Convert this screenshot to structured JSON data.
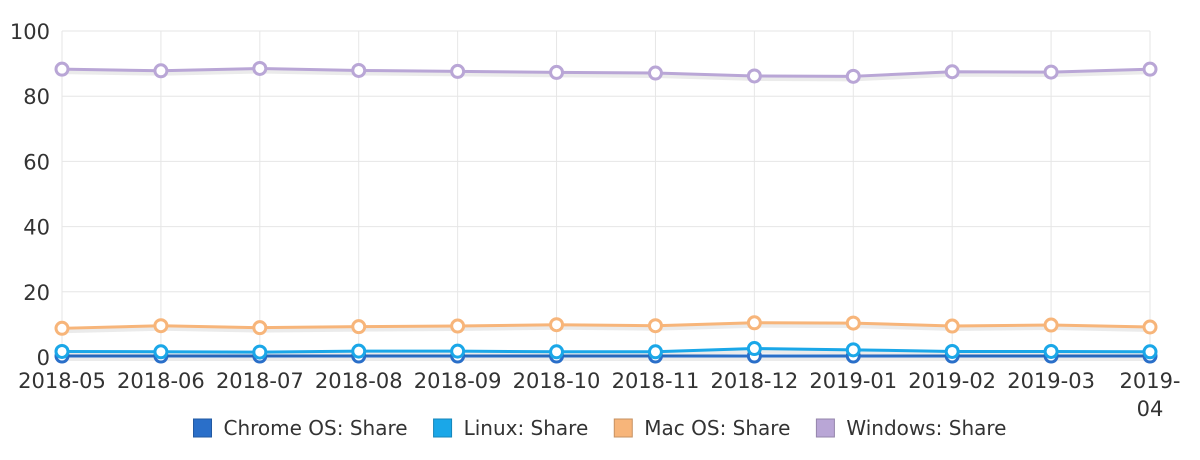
{
  "chart_data": {
    "type": "line",
    "categories": [
      "2018-05",
      "2018-06",
      "2018-07",
      "2018-08",
      "2018-09",
      "2018-10",
      "2018-11",
      "2018-12",
      "2019-01",
      "2019-02",
      "2019-03",
      "2019-04"
    ],
    "category_display": [
      [
        "2018-05"
      ],
      [
        "2018-06"
      ],
      [
        "2018-07"
      ],
      [
        "2018-08"
      ],
      [
        "2018-09"
      ],
      [
        "2018-10"
      ],
      [
        "2018-11"
      ],
      [
        "2018-12"
      ],
      [
        "2019-01"
      ],
      [
        "2019-02"
      ],
      [
        "2019-03"
      ],
      [
        "2019-",
        "04"
      ]
    ],
    "ylim": [
      0,
      100
    ],
    "yticks": [
      0,
      20,
      40,
      60,
      80,
      100
    ],
    "grid": true,
    "legend_position": "bottom",
    "series": [
      {
        "name": "Chrome OS: Share",
        "color": "#2a6fc9",
        "values": [
          0.3,
          0.3,
          0.3,
          0.3,
          0.3,
          0.3,
          0.3,
          0.3,
          0.3,
          0.3,
          0.3,
          0.3
        ]
      },
      {
        "name": "Linux: Share",
        "color": "#1aa7e8",
        "values": [
          1.7,
          1.6,
          1.5,
          1.8,
          1.8,
          1.6,
          1.6,
          2.6,
          2.2,
          1.7,
          1.7,
          1.6
        ]
      },
      {
        "name": "Mac OS: Share",
        "color": "#f7b57a",
        "values": [
          8.8,
          9.6,
          9.0,
          9.3,
          9.5,
          9.9,
          9.6,
          10.5,
          10.4,
          9.5,
          9.8,
          9.2
        ]
      },
      {
        "name": "Windows: Share",
        "color": "#b9a6d6",
        "values": [
          88.3,
          87.8,
          88.5,
          87.9,
          87.6,
          87.3,
          87.1,
          86.2,
          86.1,
          87.5,
          87.4,
          88.3
        ]
      }
    ]
  }
}
